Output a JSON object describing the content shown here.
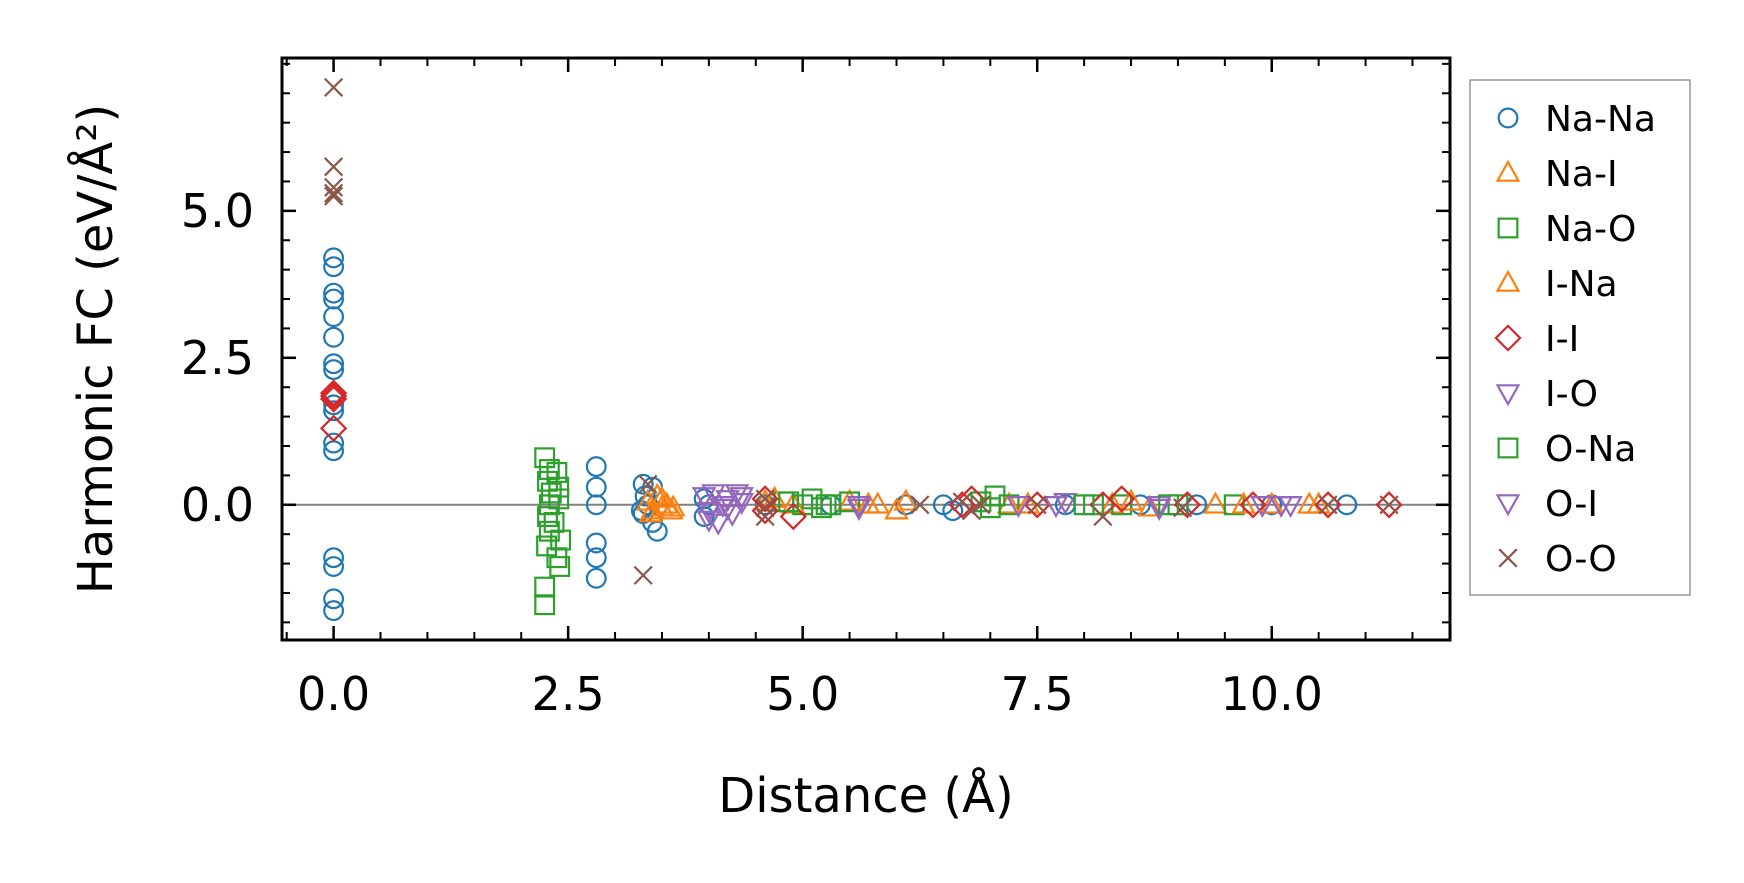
{
  "chart_data": {
    "type": "scatter",
    "xlabel": "Distance (Å)",
    "ylabel": "Harmonic FC (eV/Å²)",
    "xlim": [
      -0.55,
      11.9
    ],
    "ylim": [
      -2.3,
      7.6
    ],
    "xticks": [
      0.0,
      2.5,
      5.0,
      7.5,
      10.0
    ],
    "xtick_labels": [
      "0.0",
      "2.5",
      "5.0",
      "7.5",
      "10.0"
    ],
    "yticks": [
      0.0,
      2.5,
      5.0
    ],
    "ytick_labels": [
      "0.0",
      "2.5",
      "5.0"
    ],
    "reference_line_y": 0,
    "legend_position": "outside-right",
    "grid": false,
    "series": [
      {
        "name": "Na-Na",
        "marker": "circle",
        "color": "#1f77b4",
        "points": [
          [
            0,
            4.2
          ],
          [
            0,
            4.05
          ],
          [
            0,
            3.6
          ],
          [
            0,
            3.5
          ],
          [
            0,
            3.2
          ],
          [
            0,
            2.85
          ],
          [
            0,
            2.4
          ],
          [
            0,
            2.3
          ],
          [
            0,
            1.7
          ],
          [
            0,
            1.6
          ],
          [
            0,
            1.05
          ],
          [
            0,
            0.92
          ],
          [
            0,
            -0.9
          ],
          [
            0,
            -1.05
          ],
          [
            0,
            -1.6
          ],
          [
            0,
            -1.8
          ],
          [
            2.8,
            0.65
          ],
          [
            2.8,
            0.3
          ],
          [
            2.8,
            0.0
          ],
          [
            2.8,
            -0.65
          ],
          [
            2.8,
            -0.9
          ],
          [
            2.8,
            -1.25
          ],
          [
            3.3,
            0.35
          ],
          [
            3.32,
            0.15
          ],
          [
            3.35,
            0.0
          ],
          [
            3.3,
            -0.15
          ],
          [
            3.4,
            -0.3
          ],
          [
            3.45,
            -0.45
          ],
          [
            3.4,
            0.3
          ],
          [
            3.28,
            -0.1
          ],
          [
            3.95,
            0.1
          ],
          [
            3.95,
            -0.2
          ],
          [
            4.0,
            0.0
          ],
          [
            4.6,
            0.0
          ],
          [
            5.3,
            0.0
          ],
          [
            6.1,
            0.0
          ],
          [
            6.5,
            0.0
          ],
          [
            6.6,
            -0.1
          ],
          [
            7.8,
            0.0
          ],
          [
            8.6,
            0.0
          ],
          [
            9.2,
            0.0
          ],
          [
            10.0,
            0.0
          ],
          [
            10.8,
            0.0
          ]
        ]
      },
      {
        "name": "Na-I",
        "marker": "triangle-up",
        "color": "#ff7f0e",
        "points": [
          [
            3.35,
            0.05
          ],
          [
            3.4,
            -0.1
          ],
          [
            3.45,
            0.15
          ],
          [
            3.5,
            -0.05
          ],
          [
            3.55,
            0.0
          ],
          [
            3.6,
            -0.1
          ],
          [
            4.6,
            0.05
          ],
          [
            4.9,
            0.0
          ],
          [
            5.5,
            0.05
          ],
          [
            5.8,
            0.0
          ],
          [
            6.0,
            -0.1
          ],
          [
            7.2,
            0.0
          ],
          [
            8.3,
            0.0
          ],
          [
            8.7,
            -0.05
          ],
          [
            9.4,
            0.0
          ],
          [
            10.0,
            0.0
          ],
          [
            10.5,
            0.0
          ]
        ]
      },
      {
        "name": "Na-O",
        "marker": "square",
        "color": "#2ca02c",
        "points": [
          [
            2.25,
            0.8
          ],
          [
            2.3,
            0.6
          ],
          [
            2.28,
            0.4
          ],
          [
            2.32,
            0.2
          ],
          [
            2.3,
            0.0
          ],
          [
            2.28,
            -0.2
          ],
          [
            2.3,
            -0.45
          ],
          [
            2.27,
            -0.7
          ],
          [
            2.25,
            -1.4
          ],
          [
            2.25,
            -1.7
          ],
          [
            2.38,
            0.55
          ],
          [
            2.4,
            0.1
          ],
          [
            2.35,
            -0.3
          ],
          [
            2.38,
            -0.9
          ],
          [
            4.8,
            0.05
          ],
          [
            5.0,
            0.0
          ],
          [
            5.1,
            0.1
          ],
          [
            5.2,
            -0.05
          ],
          [
            5.3,
            0.0
          ],
          [
            5.5,
            0.05
          ],
          [
            6.9,
            0.05
          ],
          [
            7.05,
            0.15
          ],
          [
            7.2,
            0.0
          ],
          [
            8.1,
            0.0
          ],
          [
            8.4,
            0.0
          ],
          [
            9.0,
            0.0
          ],
          [
            9.6,
            0.0
          ]
        ]
      },
      {
        "name": "I-Na",
        "marker": "triangle-up",
        "color": "#ff7f0e",
        "points": [
          [
            3.38,
            -0.15
          ],
          [
            3.5,
            0.1
          ],
          [
            3.62,
            -0.05
          ],
          [
            4.7,
            0.1
          ],
          [
            5.7,
            0.0
          ],
          [
            6.1,
            0.05
          ],
          [
            7.4,
            0.0
          ],
          [
            8.5,
            0.05
          ],
          [
            9.7,
            0.0
          ],
          [
            10.4,
            0.0
          ]
        ]
      },
      {
        "name": "I-I",
        "marker": "diamond",
        "color": "#d62728",
        "points": [
          [
            0,
            1.9
          ],
          [
            0,
            1.85
          ],
          [
            0,
            1.8
          ],
          [
            0,
            1.3
          ],
          [
            4.6,
            0.1
          ],
          [
            4.6,
            -0.1
          ],
          [
            4.9,
            -0.2
          ],
          [
            6.7,
            0.0
          ],
          [
            6.8,
            0.1
          ],
          [
            7.5,
            0.0
          ],
          [
            8.2,
            0.0
          ],
          [
            8.4,
            0.1
          ],
          [
            9.1,
            0.0
          ],
          [
            9.8,
            0.0
          ],
          [
            10.6,
            0.0
          ],
          [
            11.25,
            0.0
          ]
        ]
      },
      {
        "name": "I-O",
        "marker": "triangle-down",
        "color": "#9467bd",
        "points": [
          [
            3.95,
            0.15
          ],
          [
            4.0,
            -0.1
          ],
          [
            4.05,
            0.2
          ],
          [
            4.1,
            -0.3
          ],
          [
            4.15,
            0.0
          ],
          [
            4.2,
            0.1
          ],
          [
            4.25,
            -0.15
          ],
          [
            4.3,
            0.2
          ],
          [
            4.35,
            0.05
          ],
          [
            5.6,
            0.0
          ],
          [
            7.3,
            0.0
          ],
          [
            7.8,
            0.05
          ],
          [
            8.8,
            0.0
          ],
          [
            9.9,
            0.0
          ],
          [
            10.2,
            0.0
          ]
        ]
      },
      {
        "name": "O-Na",
        "marker": "square",
        "color": "#2ca02c",
        "points": [
          [
            2.4,
            0.3
          ],
          [
            2.42,
            -0.6
          ],
          [
            2.41,
            -1.05
          ],
          [
            4.85,
            0.05
          ],
          [
            5.25,
            0.0
          ],
          [
            7.0,
            -0.05
          ],
          [
            8.0,
            0.0
          ],
          [
            8.9,
            0.0
          ]
        ]
      },
      {
        "name": "O-I",
        "marker": "triangle-down",
        "color": "#9467bd",
        "points": [
          [
            4.0,
            -0.25
          ],
          [
            4.2,
            -0.05
          ],
          [
            4.35,
            0.15
          ],
          [
            5.6,
            -0.05
          ],
          [
            7.7,
            0.0
          ],
          [
            8.8,
            -0.05
          ],
          [
            10.1,
            0.0
          ]
        ]
      },
      {
        "name": "O-O",
        "marker": "x",
        "color": "#8c564b",
        "points": [
          [
            0,
            7.1
          ],
          [
            0,
            5.75
          ],
          [
            0,
            5.4
          ],
          [
            0,
            5.3
          ],
          [
            0,
            5.25
          ],
          [
            3.3,
            -1.2
          ],
          [
            3.35,
            0.35
          ],
          [
            4.6,
            0.1
          ],
          [
            4.6,
            -0.05
          ],
          [
            4.6,
            -0.2
          ],
          [
            6.25,
            0.0
          ],
          [
            6.7,
            0.05
          ],
          [
            6.8,
            -0.1
          ],
          [
            6.9,
            0.0
          ],
          [
            7.5,
            0.0
          ],
          [
            8.2,
            -0.2
          ],
          [
            9.05,
            -0.05
          ],
          [
            10.6,
            0.0
          ],
          [
            11.25,
            0.0
          ]
        ]
      }
    ]
  }
}
